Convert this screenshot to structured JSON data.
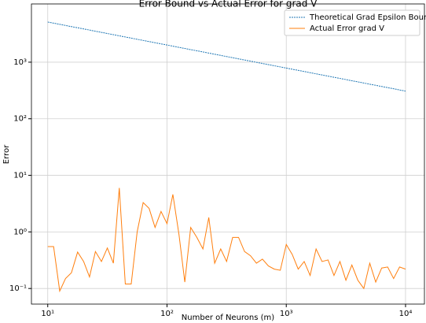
{
  "chart_data": {
    "type": "line",
    "title": "Error Bound vs Actual Error for grad V",
    "x_label": "Number of Neurons (m)",
    "y_label": "Error",
    "x_log": true,
    "y_log": true,
    "grid": true,
    "legend_loc": "upper right",
    "xlim": [
      7.3,
      14400
    ],
    "ylim": [
      0.053,
      10700
    ],
    "xticks": [
      {
        "value": 10,
        "label": "10¹"
      },
      {
        "value": 100,
        "label": "10²"
      },
      {
        "value": 1000,
        "label": "10³"
      },
      {
        "value": 10000,
        "label": "10⁴"
      }
    ],
    "yticks": [
      {
        "value": 0.1,
        "label": "10⁻¹"
      },
      {
        "value": 1,
        "label": "10⁰"
      },
      {
        "value": 10,
        "label": "10¹"
      },
      {
        "value": 100,
        "label": "10²"
      },
      {
        "value": 1000,
        "label": "10³"
      }
    ],
    "x": [
      10,
      11.2,
      12.6,
      14.1,
      15.8,
      17.8,
      20,
      22.4,
      25.1,
      28.2,
      31.6,
      35.5,
      39.8,
      44.7,
      50.1,
      56.2,
      63.1,
      70.8,
      79.4,
      89.1,
      100,
      112,
      126,
      141,
      158,
      178,
      200,
      224,
      251,
      282,
      316,
      355,
      398,
      447,
      501,
      562,
      631,
      708,
      794,
      891,
      1000,
      1122,
      1259,
      1413,
      1585,
      1778,
      1995,
      2239,
      2512,
      2818,
      3162,
      3548,
      3981,
      4467,
      5012,
      5623,
      6310,
      7079,
      7943,
      8913,
      10000
    ],
    "series": [
      {
        "name": "Theoretical Grad Epsilon Bound",
        "color": "#1f77b4",
        "dashed": true,
        "values": [
          5129,
          4894,
          4670,
          4457,
          4253,
          4058,
          3872,
          3695,
          3526,
          3365,
          3211,
          3064,
          2924,
          2790,
          2662,
          2540,
          2424,
          2313,
          2207,
          2106,
          2010,
          1918,
          1830,
          1746,
          1666,
          1590,
          1517,
          1448,
          1381,
          1318,
          1258,
          1200,
          1145,
          1093,
          1043,
          995,
          949,
          906,
          864,
          825,
          787,
          751,
          717,
          684,
          652,
          623,
          594,
          567,
          541,
          516,
          493,
          470,
          449,
          428,
          408,
          390,
          372,
          355,
          339,
          323,
          308
        ]
      },
      {
        "name": "Actual Error grad V",
        "color": "#ff7f0e",
        "dashed": false,
        "values": [
          0.55,
          0.55,
          0.09,
          0.15,
          0.19,
          0.44,
          0.3,
          0.16,
          0.45,
          0.3,
          0.52,
          0.28,
          6.0,
          0.12,
          0.12,
          1.0,
          3.3,
          2.6,
          1.2,
          2.3,
          1.4,
          4.6,
          0.9,
          0.13,
          1.2,
          0.8,
          0.5,
          1.8,
          0.28,
          0.5,
          0.3,
          0.8,
          0.8,
          0.45,
          0.38,
          0.28,
          0.33,
          0.25,
          0.22,
          0.21,
          0.6,
          0.4,
          0.22,
          0.3,
          0.17,
          0.5,
          0.3,
          0.32,
          0.17,
          0.3,
          0.14,
          0.26,
          0.14,
          0.1,
          0.28,
          0.13,
          0.23,
          0.24,
          0.15,
          0.24,
          0.22
        ]
      }
    ]
  }
}
